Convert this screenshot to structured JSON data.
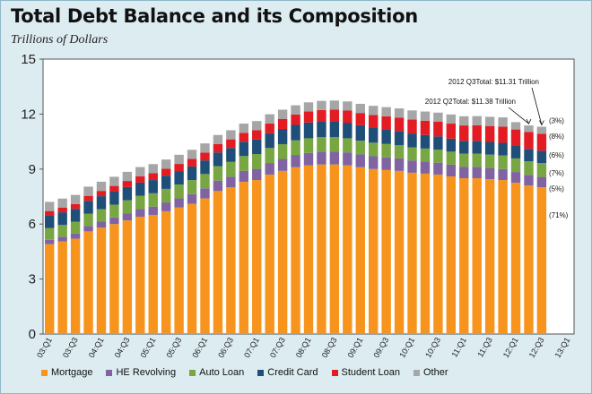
{
  "chart_data": {
    "type": "bar",
    "stacked": true,
    "title": "Total Debt Balance and its Composition",
    "subtitle": "Trillions of Dollars",
    "ylim": [
      0,
      15
    ],
    "yticks": [
      0,
      3,
      6,
      9,
      12,
      15
    ],
    "categories": [
      "03:Q1",
      "03:Q2",
      "03:Q3",
      "03:Q4",
      "04:Q1",
      "04:Q2",
      "04:Q3",
      "04:Q4",
      "05:Q1",
      "05:Q2",
      "05:Q3",
      "05:Q4",
      "06:Q1",
      "06:Q2",
      "06:Q3",
      "06:Q4",
      "07:Q1",
      "07:Q2",
      "07:Q3",
      "07:Q4",
      "08:Q1",
      "08:Q2",
      "08:Q3",
      "08:Q4",
      "09:Q1",
      "09:Q2",
      "09:Q3",
      "09:Q4",
      "10:Q1",
      "10:Q2",
      "10:Q3",
      "10:Q4",
      "11:Q1",
      "11:Q2",
      "11:Q3",
      "11:Q4",
      "12:Q1",
      "12:Q2",
      "12:Q3",
      "12:Q4",
      "13:Q1"
    ],
    "xtick_labels": [
      "03:Q1",
      "03:Q3",
      "04:Q1",
      "04:Q3",
      "05:Q1",
      "05:Q3",
      "06:Q1",
      "06:Q3",
      "07:Q1",
      "07:Q3",
      "08:Q1",
      "08:Q3",
      "09:Q1",
      "09:Q3",
      "10:Q1",
      "10:Q3",
      "11:Q1",
      "11:Q3",
      "12:Q1",
      "12:Q3",
      "13:Q1"
    ],
    "series": [
      {
        "name": "Mortgage",
        "color": "#f7941d",
        "values": [
          4.9,
          5.05,
          5.2,
          5.6,
          5.8,
          6.0,
          6.2,
          6.4,
          6.5,
          6.7,
          6.9,
          7.1,
          7.4,
          7.8,
          8.0,
          8.3,
          8.4,
          8.7,
          8.9,
          9.1,
          9.2,
          9.25,
          9.25,
          9.2,
          9.1,
          9.0,
          8.95,
          8.9,
          8.8,
          8.75,
          8.7,
          8.6,
          8.5,
          8.5,
          8.45,
          8.4,
          8.25,
          8.1,
          8.0,
          null,
          null
        ]
      },
      {
        "name": "HE Revolving",
        "color": "#8064a2",
        "values": [
          0.24,
          0.26,
          0.28,
          0.3,
          0.33,
          0.36,
          0.39,
          0.42,
          0.45,
          0.48,
          0.5,
          0.53,
          0.55,
          0.57,
          0.59,
          0.6,
          0.61,
          0.63,
          0.65,
          0.67,
          0.68,
          0.7,
          0.71,
          0.71,
          0.7,
          0.7,
          0.69,
          0.68,
          0.67,
          0.66,
          0.65,
          0.64,
          0.63,
          0.62,
          0.61,
          0.6,
          0.59,
          0.58,
          0.57,
          null,
          null
        ]
      },
      {
        "name": "Auto Loan",
        "color": "#77a642",
        "values": [
          0.64,
          0.64,
          0.65,
          0.66,
          0.68,
          0.7,
          0.71,
          0.72,
          0.73,
          0.74,
          0.76,
          0.77,
          0.78,
          0.79,
          0.8,
          0.81,
          0.81,
          0.82,
          0.81,
          0.8,
          0.8,
          0.79,
          0.78,
          0.77,
          0.75,
          0.74,
          0.73,
          0.72,
          0.71,
          0.71,
          0.71,
          0.71,
          0.71,
          0.72,
          0.73,
          0.74,
          0.74,
          0.75,
          0.76,
          null,
          null
        ]
      },
      {
        "name": "Credit Card",
        "color": "#1f4e79",
        "values": [
          0.69,
          0.69,
          0.7,
          0.71,
          0.71,
          0.71,
          0.72,
          0.72,
          0.72,
          0.72,
          0.73,
          0.74,
          0.74,
          0.75,
          0.76,
          0.78,
          0.79,
          0.81,
          0.83,
          0.84,
          0.86,
          0.86,
          0.86,
          0.85,
          0.84,
          0.82,
          0.8,
          0.78,
          0.76,
          0.74,
          0.72,
          0.71,
          0.7,
          0.7,
          0.69,
          0.69,
          0.68,
          0.67,
          0.67,
          null,
          null
        ]
      },
      {
        "name": "Student Loan",
        "color": "#e31b23",
        "values": [
          0.24,
          0.25,
          0.26,
          0.27,
          0.29,
          0.31,
          0.33,
          0.35,
          0.37,
          0.38,
          0.39,
          0.41,
          0.43,
          0.45,
          0.47,
          0.49,
          0.51,
          0.53,
          0.55,
          0.57,
          0.6,
          0.62,
          0.64,
          0.66,
          0.67,
          0.69,
          0.71,
          0.73,
          0.76,
          0.78,
          0.8,
          0.82,
          0.84,
          0.85,
          0.87,
          0.89,
          0.9,
          0.92,
          0.93,
          null,
          null
        ]
      },
      {
        "name": "Other",
        "color": "#a6a6a6",
        "values": [
          0.5,
          0.5,
          0.5,
          0.5,
          0.5,
          0.5,
          0.5,
          0.5,
          0.5,
          0.5,
          0.5,
          0.5,
          0.5,
          0.5,
          0.5,
          0.5,
          0.5,
          0.5,
          0.5,
          0.5,
          0.5,
          0.5,
          0.5,
          0.5,
          0.5,
          0.5,
          0.5,
          0.5,
          0.5,
          0.5,
          0.5,
          0.5,
          0.5,
          0.5,
          0.5,
          0.5,
          0.4,
          0.36,
          0.38,
          null,
          null
        ]
      }
    ],
    "annotations": [
      {
        "text": "2012 Q3Total: $11.31 Trillion",
        "target_index": 38
      },
      {
        "text": "2012 Q2Total: $11.38 Trillion",
        "target_index": 37
      }
    ],
    "share_labels": [
      "(3%)",
      "(8%)",
      "(6%)",
      "(7%)",
      "(5%)",
      "(71%)"
    ],
    "grid": false,
    "legend_position": "bottom"
  }
}
